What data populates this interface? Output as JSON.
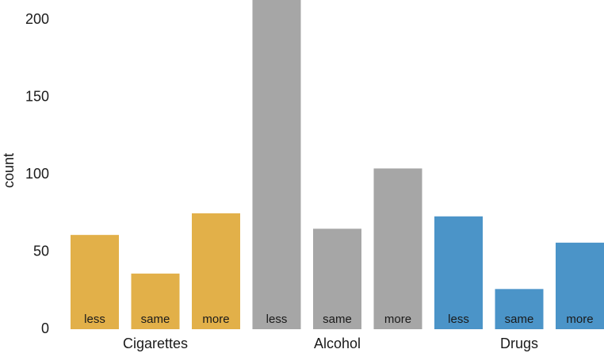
{
  "chart_data": {
    "type": "bar",
    "y_label": "count",
    "categories": [
      "less",
      "same",
      "more"
    ],
    "series": [
      {
        "name": "Cigarettes",
        "color": "#e2b049",
        "values": [
          61,
          36,
          75
        ]
      },
      {
        "name": "Alcohol",
        "color": "#a6a6a6",
        "values": [
          220,
          65,
          104
        ]
      },
      {
        "name": "Drugs",
        "color": "#4b94c8",
        "values": [
          73,
          26,
          56
        ]
      }
    ],
    "ylim": [
      0,
      213
    ],
    "yticks": [
      0,
      50,
      100,
      150,
      200
    ],
    "grid": false
  }
}
